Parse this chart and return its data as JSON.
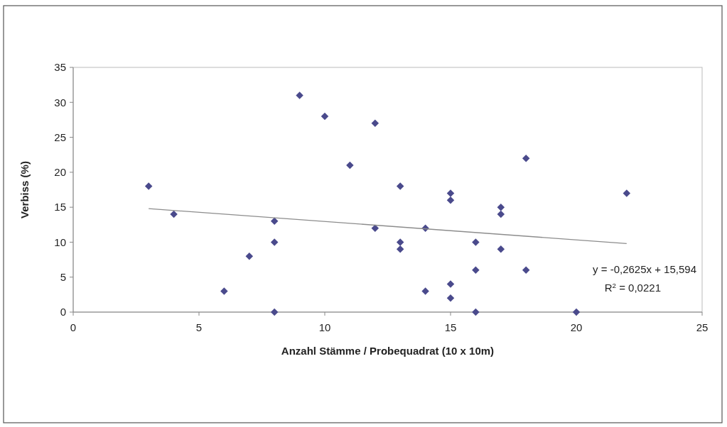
{
  "chart_data": {
    "type": "scatter",
    "xlabel": "Anzahl Stämme / Probequadrat (10 x 10m)",
    "ylabel": "Verbiss (%)",
    "x": [
      3,
      4,
      6,
      7,
      8,
      8,
      8,
      9,
      10,
      11,
      12,
      12,
      13,
      13,
      13,
      14,
      14,
      15,
      15,
      15,
      15,
      16,
      16,
      16,
      17,
      17,
      17,
      18,
      18,
      20,
      22
    ],
    "series": [
      {
        "color": "#4a4a8c",
        "marker": "diamond",
        "values": [
          18,
          14,
          3,
          8,
          13,
          10,
          0,
          31,
          28,
          21,
          27,
          12,
          18,
          10,
          9,
          12,
          3,
          17,
          16,
          4,
          2,
          10,
          6,
          0,
          15,
          14,
          9,
          22,
          6,
          0,
          17
        ]
      },
      {
        "type": "line",
        "color": "#8c8c8c",
        "x": [
          3,
          22
        ],
        "values": [
          14.8,
          9.8
        ]
      }
    ],
    "annotations": [
      "y = -0,2625x + 15,594",
      "R$^{2}$ = 0,0221"
    ],
    "xlim": [
      0,
      25
    ],
    "xticks": [
      0,
      5,
      10,
      15,
      20,
      25
    ],
    "ylim": [
      0,
      35
    ],
    "yticks": [
      0,
      5,
      10,
      15,
      20,
      25,
      30,
      35
    ],
    "grid": false
  }
}
